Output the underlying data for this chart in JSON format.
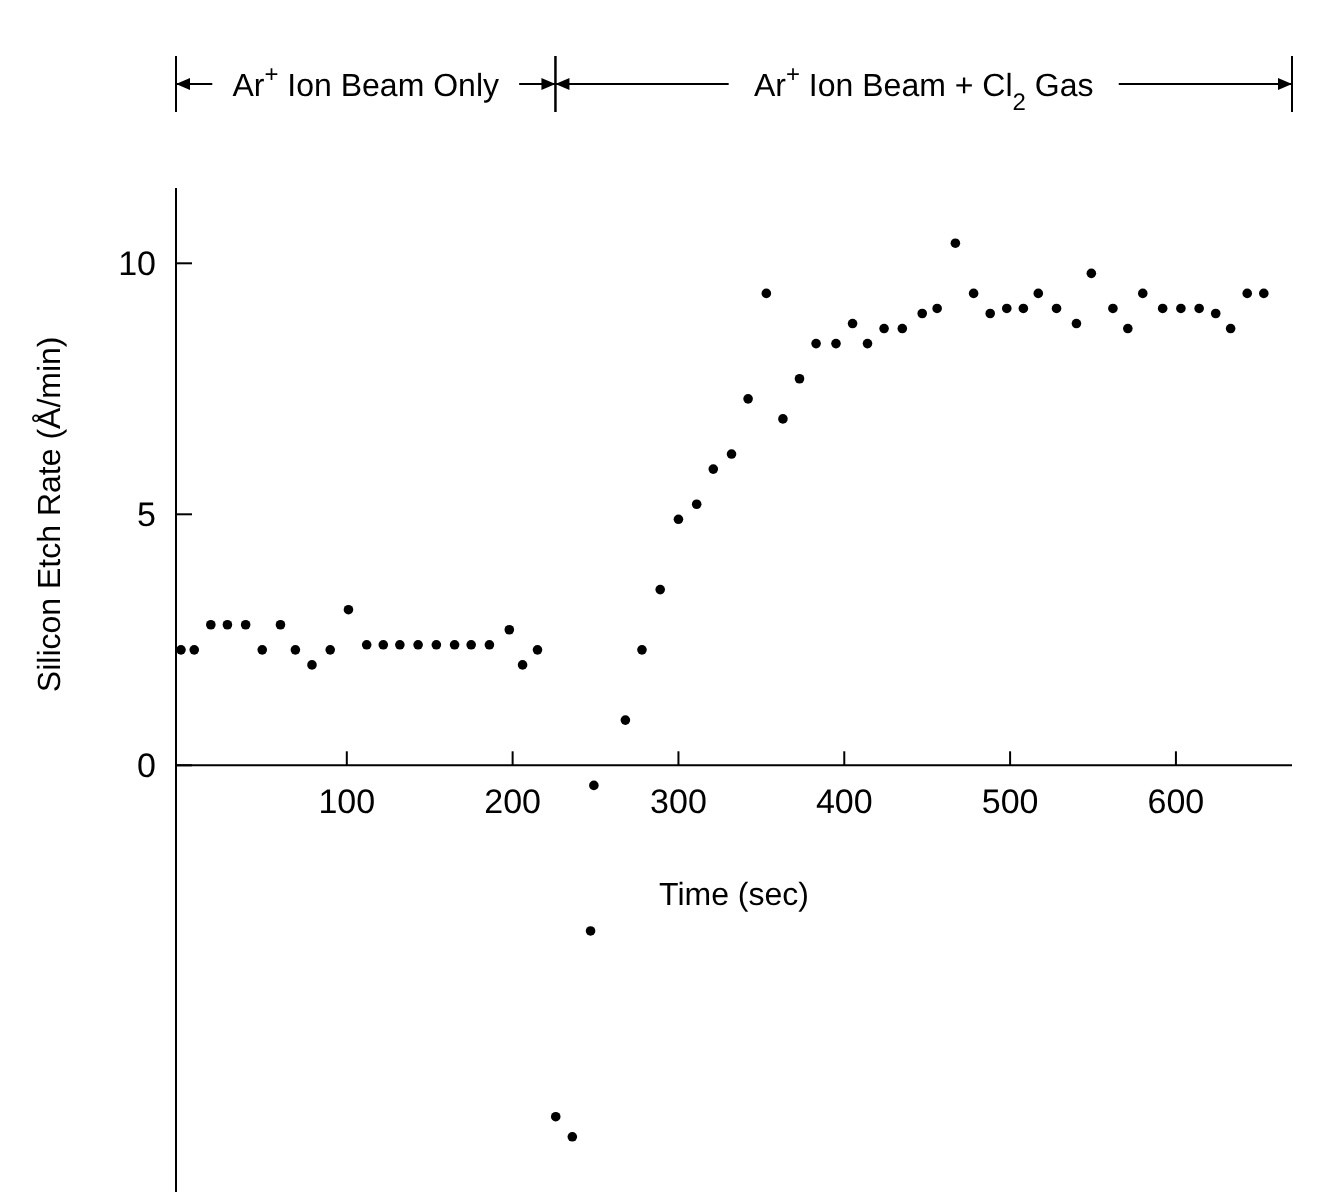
{
  "chart_data": {
    "type": "scatter",
    "xlabel": "Time (sec)",
    "ylabel": "Silicon Etch Rate (Å/min)",
    "x": [
      0,
      8,
      18,
      28,
      39,
      49,
      60,
      69,
      79,
      90,
      101,
      112,
      122,
      132,
      143,
      154,
      165,
      175,
      186,
      198,
      206,
      215,
      226,
      236,
      247,
      249,
      268,
      278,
      289,
      300,
      311,
      321,
      332,
      342,
      353,
      363,
      373,
      383,
      395,
      405,
      414,
      424,
      435,
      447,
      456,
      467,
      478,
      488,
      498,
      508,
      517,
      528,
      540,
      549,
      562,
      571,
      580,
      592,
      603,
      614,
      624,
      633,
      643,
      653
    ],
    "values": [
      2.3,
      2.3,
      2.8,
      2.8,
      2.8,
      2.3,
      2.8,
      2.3,
      2.0,
      2.3,
      3.1,
      2.4,
      2.4,
      2.4,
      2.4,
      2.4,
      2.4,
      2.4,
      2.4,
      2.7,
      2.0,
      2.3,
      -7.0,
      -7.4,
      -3.3,
      -0.4,
      0.9,
      2.3,
      3.5,
      4.9,
      5.2,
      5.9,
      6.2,
      7.3,
      9.4,
      6.9,
      7.7,
      8.4,
      8.4,
      8.8,
      8.4,
      8.7,
      8.7,
      9.0,
      9.1,
      10.4,
      9.4,
      9.0,
      9.1,
      9.1,
      9.4,
      9.1,
      8.8,
      9.8,
      9.1,
      8.7,
      9.4,
      9.1,
      9.1,
      9.1,
      9.0,
      8.7,
      9.4,
      9.4
    ],
    "color": "#000000",
    "marker": "circle",
    "grid": false,
    "xlim": [
      -3,
      670
    ],
    "ylim": [
      -8.5,
      11.5
    ],
    "xticks": [
      100,
      200,
      300,
      400,
      500,
      600
    ],
    "yticks": [
      0,
      5,
      10
    ],
    "annotations": [
      "Ar$^{+}$ Ion Beam Only",
      "Ar$^{+}$ Ion Beam + Cl$_{2}$ Gas"
    ]
  }
}
